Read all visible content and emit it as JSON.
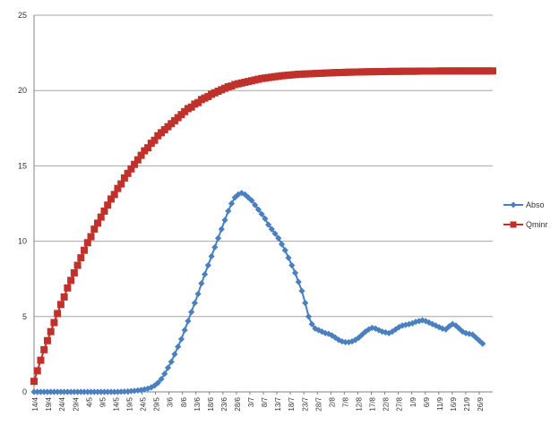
{
  "chart_data": {
    "type": "line",
    "title": "",
    "xlabel": "",
    "ylabel": "",
    "ylim": [
      0,
      25
    ],
    "y_ticks": [
      0,
      5,
      10,
      15,
      20,
      25
    ],
    "grid": "horizontal",
    "legend_position": "right",
    "x_tick_labels": [
      "14/4",
      "19/4",
      "24/4",
      "29/4",
      "4/5",
      "9/5",
      "14/5",
      "19/5",
      "24/5",
      "29/5",
      "3/6",
      "8/6",
      "13/6",
      "18/6",
      "23/6",
      "28/6",
      "3/7",
      "8/7",
      "13/7",
      "18/7",
      "23/7",
      "28/7",
      "2/8",
      "7/8",
      "12/8",
      "17/8",
      "22/8",
      "27/8",
      "1/9",
      "6/9",
      "11/9",
      "16/9",
      "21/9",
      "26/9"
    ],
    "series": [
      {
        "name": "Abso",
        "color": "#4a7fc0",
        "marker": "diamond",
        "values": [
          0,
          0,
          0,
          0,
          0,
          0,
          0,
          0,
          0,
          0,
          0,
          0,
          0,
          0,
          0,
          0,
          0,
          0,
          0,
          0,
          0,
          0,
          0,
          0,
          0,
          0,
          0.01,
          0.02,
          0.03,
          0.05,
          0.07,
          0.1,
          0.13,
          0.17,
          0.22,
          0.3,
          0.42,
          0.6,
          0.85,
          1.2,
          1.6,
          2,
          2.5,
          3,
          3.5,
          4.1,
          4.7,
          5.3,
          5.9,
          6.5,
          7.2,
          7.8,
          8.4,
          9,
          9.6,
          10.2,
          10.8,
          11.4,
          12,
          12.5,
          12.9,
          13.1,
          13.2,
          13.1,
          12.9,
          12.7,
          12.4,
          12.1,
          11.8,
          11.5,
          11.1,
          10.8,
          10.5,
          10.2,
          9.8,
          9.4,
          8.9,
          8.4,
          7.9,
          7.3,
          6.7,
          5.9,
          5,
          4.5,
          4.2,
          4.1,
          4,
          3.9,
          3.85,
          3.75,
          3.6,
          3.45,
          3.35,
          3.3,
          3.3,
          3.35,
          3.45,
          3.6,
          3.8,
          4,
          4.15,
          4.25,
          4.2,
          4.1,
          4,
          3.95,
          3.9,
          4,
          4.15,
          4.3,
          4.4,
          4.45,
          4.5,
          4.55,
          4.65,
          4.7,
          4.75,
          4.7,
          4.6,
          4.5,
          4.4,
          4.3,
          4.2,
          4.15,
          4.35,
          4.5,
          4.4,
          4.2,
          4,
          3.9,
          3.85,
          3.8,
          3.6,
          3.4,
          3.2
        ]
      },
      {
        "name": "Qminr",
        "color": "#c0312b",
        "marker": "square",
        "values": [
          0.7,
          1.4,
          2.1,
          2.8,
          3.4,
          4,
          4.6,
          5.2,
          5.8,
          6.3,
          6.9,
          7.4,
          7.9,
          8.4,
          8.9,
          9.4,
          9.9,
          10.3,
          10.8,
          11.2,
          11.6,
          12,
          12.4,
          12.8,
          13.1,
          13.5,
          13.8,
          14.2,
          14.5,
          14.8,
          15.1,
          15.4,
          15.7,
          16,
          16.2,
          16.5,
          16.7,
          17,
          17.2,
          17.4,
          17.6,
          17.8,
          18,
          18.2,
          18.4,
          18.6,
          18.8,
          18.9,
          19.1,
          19.2,
          19.4,
          19.5,
          19.6,
          19.75,
          19.85,
          19.95,
          20.05,
          20.15,
          20.25,
          20.3,
          20.4,
          20.45,
          20.5,
          20.55,
          20.6,
          20.65,
          20.7,
          20.75,
          20.8,
          20.83,
          20.86,
          20.89,
          20.92,
          20.95,
          20.98,
          21,
          21.02,
          21.04,
          21.06,
          21.08,
          21.09,
          21.1,
          21.11,
          21.12,
          21.13,
          21.14,
          21.15,
          21.16,
          21.17,
          21.18,
          21.19,
          21.2,
          21.2,
          21.21,
          21.22,
          21.22,
          21.23,
          21.23,
          21.24,
          21.24,
          21.25,
          21.25,
          21.25,
          21.26,
          21.26,
          21.26,
          21.27,
          21.27,
          21.27,
          21.27,
          21.28,
          21.28,
          21.28,
          21.28,
          21.28,
          21.29,
          21.29,
          21.29,
          21.29,
          21.29,
          21.29,
          21.3,
          21.3,
          21.3,
          21.3,
          21.3,
          21.3,
          21.3,
          21.3,
          21.3,
          21.3,
          21.3,
          21.3,
          21.3,
          21.3,
          21.3,
          21.3,
          21.3
        ]
      }
    ]
  }
}
